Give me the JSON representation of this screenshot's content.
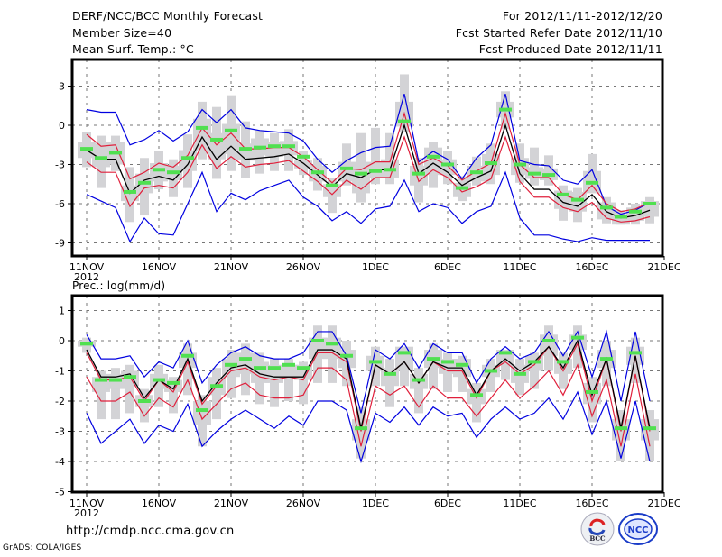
{
  "header": {
    "title": "DERF/NCC/BCC Monthly Forecast",
    "member_size": "Member Size=40",
    "period": "For 2012/11/11-2012/12/20",
    "started": "Fcst Started Refer Date 2012/11/10",
    "produced": "Fcst Produced Date 2012/11/11"
  },
  "footer": {
    "url": "http://cmdp.ncc.cma.gov.cn",
    "credit": "GrADS: COLA/IGES",
    "logo_left": "BCC",
    "logo_right": "NCC"
  },
  "colors": {
    "mean": "#000000",
    "spread": "#e0203c",
    "extreme": "#0000e0",
    "marker": "#50e050",
    "box": "#d3d3d6",
    "grid": "#777777"
  },
  "chart_data": [
    {
      "type": "line",
      "title": "Mean Surf. Temp.: °C",
      "xlabel": "",
      "ylabel": "",
      "ylim": [
        -10,
        4.9
      ],
      "yticks": [
        3,
        0,
        -3,
        -6,
        -9
      ],
      "ytick_labels": [
        "3",
        "0",
        "-3",
        "-6",
        "-9"
      ],
      "xtick_days": [
        0,
        5,
        10,
        15,
        20,
        25,
        30,
        35,
        40
      ],
      "xtick_labels": [
        "11NOV",
        "16NOV",
        "21NOV",
        "26NOV",
        "1DEC",
        "6DEC",
        "11DEC",
        "16DEC",
        "21DEC"
      ],
      "xtick_sub": "2012",
      "grid": true,
      "x_days": 40,
      "series": [
        {
          "name": "ensemble-mean",
          "values": [
            -1.9,
            -2.6,
            -2.6,
            -5.2,
            -4.2,
            -3.9,
            -4.2,
            -3.0,
            -0.9,
            -2.6,
            -1.6,
            -2.6,
            -2.5,
            -2.4,
            -2.2,
            -2.9,
            -3.8,
            -4.7,
            -3.7,
            -4.0,
            -3.4,
            -3.4,
            0.0,
            -3.7,
            -2.9,
            -3.6,
            -4.6,
            -4.0,
            -3.5,
            0.0,
            -3.7,
            -4.9,
            -4.9,
            -5.9,
            -6.2,
            -5.3,
            -6.6,
            -7.1,
            -6.9,
            -6.5
          ]
        },
        {
          "name": "spread-upper",
          "values": [
            -0.7,
            -1.6,
            -1.5,
            -4.1,
            -3.6,
            -2.9,
            -3.2,
            -2.3,
            -0.2,
            -1.5,
            -0.6,
            -1.8,
            -1.8,
            -1.7,
            -1.7,
            -2.4,
            -3.4,
            -4.4,
            -3.3,
            -3.4,
            -2.8,
            -2.8,
            0.9,
            -3.0,
            -2.5,
            -3.1,
            -4.2,
            -3.5,
            -2.9,
            0.9,
            -3.0,
            -4.0,
            -4.0,
            -5.3,
            -5.7,
            -4.6,
            -6.0,
            -6.6,
            -6.4,
            -5.9
          ]
        },
        {
          "name": "spread-lower",
          "values": [
            -2.8,
            -3.6,
            -3.6,
            -6.2,
            -4.8,
            -4.6,
            -4.8,
            -3.6,
            -1.5,
            -3.3,
            -2.4,
            -3.2,
            -3.0,
            -2.9,
            -2.7,
            -3.5,
            -4.3,
            -5.3,
            -4.2,
            -4.9,
            -4.0,
            -4.0,
            -0.9,
            -4.3,
            -3.4,
            -4.0,
            -5.1,
            -4.7,
            -4.1,
            -0.9,
            -4.3,
            -5.5,
            -5.5,
            -6.3,
            -6.6,
            -5.9,
            -7.1,
            -7.4,
            -7.3,
            -7.0
          ]
        },
        {
          "name": "member-max",
          "values": [
            1.2,
            1.0,
            1.0,
            -1.5,
            -1.1,
            -0.4,
            -1.2,
            -0.5,
            1.2,
            0.2,
            1.2,
            -0.2,
            -0.4,
            -0.5,
            -0.6,
            -1.2,
            -2.6,
            -3.6,
            -2.7,
            -2.1,
            -1.7,
            -1.6,
            2.4,
            -2.8,
            -2.0,
            -2.6,
            -4.1,
            -2.5,
            -1.5,
            2.4,
            -2.7,
            -3.0,
            -3.1,
            -4.2,
            -4.5,
            -3.4,
            -6.2,
            -6.8,
            -6.5,
            -5.9
          ]
        },
        {
          "name": "member-min",
          "values": [
            -5.3,
            -5.8,
            -6.3,
            -8.9,
            -7.1,
            -8.3,
            -8.4,
            -6.0,
            -3.6,
            -6.6,
            -5.2,
            -5.7,
            -5.0,
            -4.6,
            -4.2,
            -5.5,
            -6.2,
            -7.3,
            -6.6,
            -7.5,
            -6.4,
            -6.2,
            -4.2,
            -6.6,
            -6.0,
            -6.3,
            -7.5,
            -6.6,
            -6.2,
            -3.6,
            -7.1,
            -8.4,
            -8.4,
            -8.7,
            -8.9,
            -8.6,
            -8.8,
            -8.8,
            -8.8,
            -8.8
          ]
        },
        {
          "name": "marker",
          "values": [
            -1.8,
            -2.5,
            -2.1,
            -5.1,
            -4.4,
            -3.4,
            -3.6,
            -2.5,
            -0.2,
            -1.1,
            -0.4,
            -1.8,
            -1.7,
            -1.6,
            -1.6,
            -2.4,
            -3.6,
            -4.6,
            -3.3,
            -3.7,
            -3.5,
            -3.4,
            0.3,
            -3.7,
            -2.4,
            -3.0,
            -4.8,
            -3.6,
            -2.9,
            1.2,
            -3.0,
            -3.7,
            -3.8,
            -5.3,
            -5.7,
            -4.4,
            -6.3,
            -7.0,
            -6.6,
            -6.0
          ]
        },
        {
          "name": "box-outer-high",
          "values": [
            -0.5,
            -0.8,
            -0.8,
            -3.2,
            -2.5,
            -2.0,
            -2.6,
            -0.7,
            1.8,
            1.4,
            2.3,
            0.3,
            -0.4,
            -0.6,
            -0.3,
            -2.0,
            -2.5,
            -4.0,
            -1.4,
            -0.6,
            -0.2,
            -0.6,
            3.9,
            -2.5,
            -1.3,
            -2.0,
            -3.9,
            -2.4,
            -1.4,
            2.6,
            -1.4,
            -1.7,
            -2.3,
            -4.6,
            -4.8,
            -2.2,
            -5.5,
            -6.5,
            -6.0,
            -5.5
          ]
        },
        {
          "name": "box-outer-low",
          "values": [
            -3.2,
            -4.8,
            -3.5,
            -7.4,
            -6.9,
            -4.9,
            -5.5,
            -4.8,
            -2.6,
            -4.1,
            -3.5,
            -4.0,
            -3.7,
            -3.5,
            -3.5,
            -3.8,
            -5.0,
            -6.7,
            -4.6,
            -5.9,
            -4.5,
            -4.5,
            -0.5,
            -5.9,
            -4.8,
            -4.5,
            -5.8,
            -4.6,
            -4.5,
            -0.3,
            -4.4,
            -4.6,
            -4.6,
            -7.3,
            -7.4,
            -4.7,
            -7.5,
            -7.6,
            -7.6,
            -7.5
          ]
        },
        {
          "name": "box-inner-high",
          "values": [
            -1.3,
            -1.4,
            -1.3,
            -4.6,
            -3.7,
            -2.9,
            -3.1,
            -1.9,
            0.5,
            -0.6,
            0.1,
            -1.4,
            -1.0,
            -1.3,
            -1.2,
            -2.7,
            -3.1,
            -4.5,
            -2.8,
            -2.9,
            -2.8,
            -2.6,
            1.8,
            -3.1,
            -1.7,
            -2.6,
            -4.4,
            -3.1,
            -2.2,
            1.8,
            -2.5,
            -3.2,
            -3.3,
            -5.0,
            -5.1,
            -3.5,
            -5.9,
            -6.8,
            -6.3,
            -5.8
          ]
        },
        {
          "name": "box-inner-low",
          "values": [
            -2.5,
            -3.2,
            -3.0,
            -5.8,
            -5.2,
            -4.3,
            -4.2,
            -3.5,
            -2.0,
            -2.6,
            -2.2,
            -2.7,
            -2.3,
            -2.4,
            -2.3,
            -3.3,
            -4.3,
            -5.5,
            -4.3,
            -5.2,
            -4.0,
            -4.0,
            -0.1,
            -4.6,
            -3.8,
            -3.8,
            -5.5,
            -4.3,
            -3.8,
            0.6,
            -3.8,
            -4.1,
            -4.2,
            -6.4,
            -6.6,
            -5.2,
            -7.2,
            -7.6,
            -7.3,
            -7.0
          ]
        }
      ]
    },
    {
      "type": "line",
      "title": "Prec.: log(mm/d)",
      "xlabel": "",
      "ylabel": "",
      "ylim": [
        -5,
        1.5
      ],
      "yticks": [
        1,
        0,
        -1,
        -2,
        -3,
        -4,
        -5
      ],
      "ytick_labels": [
        "1",
        "0",
        "-1",
        "-2",
        "-3",
        "-4",
        "-5"
      ],
      "xtick_days": [
        0,
        5,
        10,
        15,
        20,
        25,
        30,
        35,
        40
      ],
      "xtick_labels": [
        "11NOV",
        "16NOV",
        "21NOV",
        "26NOV",
        "1DEC",
        "6DEC",
        "11DEC",
        "16DEC",
        "21DEC"
      ],
      "xtick_sub": "2012",
      "grid": true,
      "x_days": 40,
      "series": [
        {
          "name": "ensemble-mean",
          "values": [
            -0.3,
            -1.2,
            -1.2,
            -1.1,
            -1.9,
            -1.3,
            -1.6,
            -0.6,
            -2.0,
            -1.4,
            -0.9,
            -0.8,
            -1.1,
            -1.2,
            -1.2,
            -1.2,
            -0.3,
            -0.3,
            -0.6,
            -2.9,
            -0.8,
            -1.1,
            -0.7,
            -1.4,
            -0.7,
            -0.9,
            -0.9,
            -1.8,
            -1.0,
            -0.6,
            -1.0,
            -0.7,
            -0.2,
            -0.9,
            0.0,
            -1.8,
            -0.6,
            -2.9,
            -0.5,
            -2.9
          ]
        },
        {
          "name": "spread-upper",
          "values": [
            -0.4,
            -1.3,
            -1.3,
            -1.2,
            -2.0,
            -1.3,
            -1.7,
            -0.7,
            -2.1,
            -1.5,
            -1.0,
            -0.9,
            -1.2,
            -1.3,
            -1.2,
            -1.3,
            -0.4,
            -0.4,
            -0.7,
            -3.0,
            -0.8,
            -1.1,
            -0.7,
            -1.4,
            -0.7,
            -1.0,
            -1.0,
            -1.9,
            -1.0,
            -0.7,
            -1.1,
            -0.8,
            -0.2,
            -1.0,
            -0.1,
            -2.0,
            -0.6,
            -3.0,
            -0.5,
            -3.0
          ]
        },
        {
          "name": "spread-lower",
          "values": [
            -1.2,
            -2.0,
            -2.0,
            -1.7,
            -2.5,
            -1.9,
            -2.2,
            -1.3,
            -2.6,
            -2.1,
            -1.6,
            -1.4,
            -1.8,
            -1.9,
            -1.9,
            -1.8,
            -0.9,
            -0.9,
            -1.3,
            -3.5,
            -1.5,
            -1.8,
            -1.5,
            -2.2,
            -1.5,
            -1.9,
            -1.9,
            -2.5,
            -1.9,
            -1.3,
            -1.9,
            -1.5,
            -1.0,
            -1.8,
            -0.8,
            -2.5,
            -1.3,
            -3.5,
            -1.1,
            -3.5
          ]
        },
        {
          "name": "member-max",
          "values": [
            0.2,
            -0.6,
            -0.6,
            -0.5,
            -1.2,
            -0.7,
            -0.9,
            0.0,
            -1.4,
            -0.8,
            -0.4,
            -0.2,
            -0.5,
            -0.6,
            -0.6,
            -0.4,
            0.3,
            0.3,
            -0.5,
            -2.4,
            -0.3,
            -0.6,
            -0.1,
            -0.9,
            -0.1,
            -0.4,
            -0.4,
            -1.4,
            -0.6,
            -0.2,
            -0.6,
            -0.4,
            0.3,
            -0.5,
            0.3,
            -1.2,
            0.3,
            -2.0,
            0.3,
            -2.0
          ]
        },
        {
          "name": "member-min",
          "values": [
            -2.4,
            -3.4,
            -3.0,
            -2.6,
            -3.4,
            -2.8,
            -3.0,
            -2.1,
            -3.5,
            -3.0,
            -2.6,
            -2.3,
            -2.6,
            -2.9,
            -2.5,
            -2.8,
            -2.0,
            -2.0,
            -2.3,
            -4.0,
            -2.4,
            -2.7,
            -2.2,
            -2.8,
            -2.2,
            -2.5,
            -2.4,
            -3.2,
            -2.6,
            -2.2,
            -2.6,
            -2.4,
            -1.9,
            -2.6,
            -1.7,
            -3.1,
            -2.0,
            -3.9,
            -2.0,
            -4.0
          ]
        },
        {
          "name": "marker",
          "values": [
            -0.1,
            -1.3,
            -1.3,
            -1.2,
            -2.0,
            -1.3,
            -1.4,
            -0.5,
            -2.3,
            -1.5,
            -0.8,
            -0.6,
            -0.9,
            -0.9,
            -0.8,
            -0.9,
            0.0,
            -0.1,
            -0.5,
            -2.9,
            -0.7,
            -1.1,
            -0.4,
            -1.3,
            -0.6,
            -0.7,
            -0.8,
            -1.8,
            -1.0,
            -0.4,
            -1.1,
            -0.7,
            0.0,
            -0.7,
            0.1,
            -1.7,
            -0.6,
            -2.9,
            -0.4,
            -2.9
          ]
        },
        {
          "name": "box-outer-high",
          "values": [
            0.1,
            -1.0,
            -0.9,
            -0.8,
            -1.6,
            -0.8,
            -1.2,
            -0.1,
            -1.8,
            -0.9,
            -0.3,
            -0.1,
            -0.4,
            -0.6,
            -0.6,
            -0.7,
            0.5,
            0.5,
            0.0,
            -2.2,
            -0.2,
            -0.6,
            -0.3,
            -0.9,
            -0.1,
            -0.4,
            -0.5,
            -1.4,
            -0.6,
            -0.3,
            -0.6,
            -0.4,
            0.5,
            -0.4,
            0.5,
            -1.2,
            0.0,
            -2.3,
            0.1,
            -2.3
          ]
        },
        {
          "name": "box-outer-low",
          "values": [
            -0.4,
            -2.6,
            -2.6,
            -2.4,
            -2.7,
            -2.2,
            -2.4,
            -1.8,
            -3.5,
            -2.6,
            -1.9,
            -1.8,
            -2.1,
            -2.2,
            -2.0,
            -2.1,
            -1.4,
            -1.4,
            -1.5,
            -3.9,
            -1.5,
            -2.2,
            -1.5,
            -2.4,
            -1.6,
            -1.7,
            -1.7,
            -2.7,
            -1.7,
            -1.3,
            -1.8,
            -1.6,
            -1.0,
            -1.6,
            -0.9,
            -2.7,
            -1.5,
            -4.0,
            -1.4,
            -4.0
          ]
        },
        {
          "name": "box-inner-high",
          "values": [
            -0.0,
            -1.2,
            -1.1,
            -1.0,
            -1.8,
            -1.1,
            -1.3,
            -0.4,
            -2.0,
            -1.2,
            -0.6,
            -0.4,
            -0.7,
            -0.8,
            -0.8,
            -0.8,
            0.1,
            0.1,
            -0.3,
            -2.6,
            -0.5,
            -0.9,
            -0.2,
            -1.1,
            -0.3,
            -0.6,
            -0.6,
            -1.6,
            -0.8,
            -0.3,
            -0.8,
            -0.5,
            0.2,
            -0.6,
            0.2,
            -1.4,
            -0.3,
            -2.6,
            -0.2,
            -2.6
          ]
        },
        {
          "name": "box-inner-low",
          "values": [
            -0.2,
            -1.7,
            -1.6,
            -1.5,
            -2.2,
            -1.6,
            -1.7,
            -0.9,
            -2.8,
            -1.8,
            -1.2,
            -1.1,
            -1.4,
            -1.4,
            -1.2,
            -1.3,
            -0.6,
            -0.6,
            -0.9,
            -3.3,
            -1.0,
            -1.5,
            -1.0,
            -1.6,
            -0.9,
            -1.1,
            -1.2,
            -2.1,
            -1.2,
            -0.8,
            -1.4,
            -1.0,
            -0.5,
            -1.1,
            -0.3,
            -2.1,
            -0.9,
            -3.3,
            -0.8,
            -3.3
          ]
        }
      ]
    }
  ]
}
